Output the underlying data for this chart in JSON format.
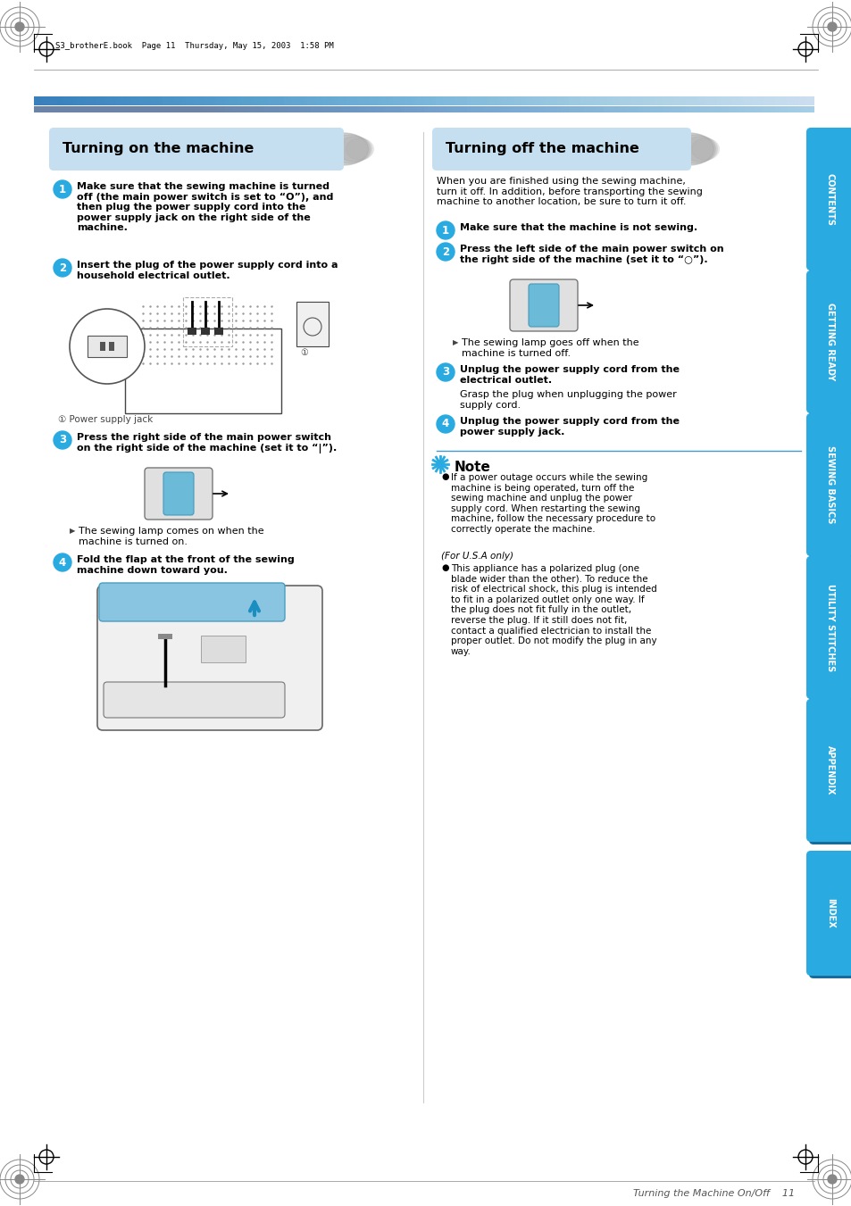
{
  "page_bg": "#ffffff",
  "title_left": "Turning on the machine",
  "title_right": "Turning off the machine",
  "tab_color": "#29aae1",
  "tab_shadow": "#1a6a9a",
  "tab_labels": [
    "CONTENTS",
    "GETTING READY",
    "SEWING BASICS",
    "UTILITY STITCHES",
    "APPENDIX",
    "INDEX"
  ],
  "footer_text": "Turning the Machine On/Off    11",
  "header_note": "S3_brotherE.book  Page 11  Thursday, May 15, 2003  1:58 PM",
  "caption_text": "① Power supply jack",
  "left_step1": "Make sure that the sewing machine is turned\noff (the main power switch is set to “O”), and\nthen plug the power supply cord into the\npower supply jack on the right side of the\nmachine.",
  "left_step2": "Insert the plug of the power supply cord into a\nhousehold electrical outlet.",
  "left_step3": "Press the right side of the main power switch\non the right side of the machine (set it to “|”).",
  "left_step4": "Fold the flap at the front of the sewing\nmachine down toward you.",
  "left_arrow_text": "The sewing lamp comes on when the\nmachine is turned on.",
  "right_intro": "When you are finished using the sewing machine,\nturn it off. In addition, before transporting the sewing\nmachine to another location, be sure to turn it off.",
  "right_step1": "Make sure that the machine is not sewing.",
  "right_step2": "Press the left side of the main power switch on\nthe right side of the machine (set it to “○”).",
  "right_step3_bold": "Unplug the power supply cord from the\nelectrical outlet.",
  "right_step3_normal": "Grasp the plug when unplugging the power\nsupply cord.",
  "right_step4": "Unplug the power supply cord from the\npower supply jack.",
  "right_arrow_text": "The sewing lamp goes off when the\nmachine is turned off.",
  "note_title": "Note",
  "note_bullet1": "If a power outage occurs while the sewing\nmachine is being operated, turn off the\nsewing machine and unplug the power\nsupply cord. When restarting the sewing\nmachine, follow the necessary procedure to\ncorrectly operate the machine.",
  "note_usa": "(For U.S.A only)",
  "note_bullet2": "This appliance has a polarized plug (one\nblade wider than the other). To reduce the\nrisk of electrical shock, this plug is intended\nto fit in a polarized outlet only one way. If\nthe plug does not fit fully in the outlet,\nreverse the plug. If it still does not fit,\ncontact a qualified electrician to install the\nproper outlet. Do not modify the plug in any\nway."
}
